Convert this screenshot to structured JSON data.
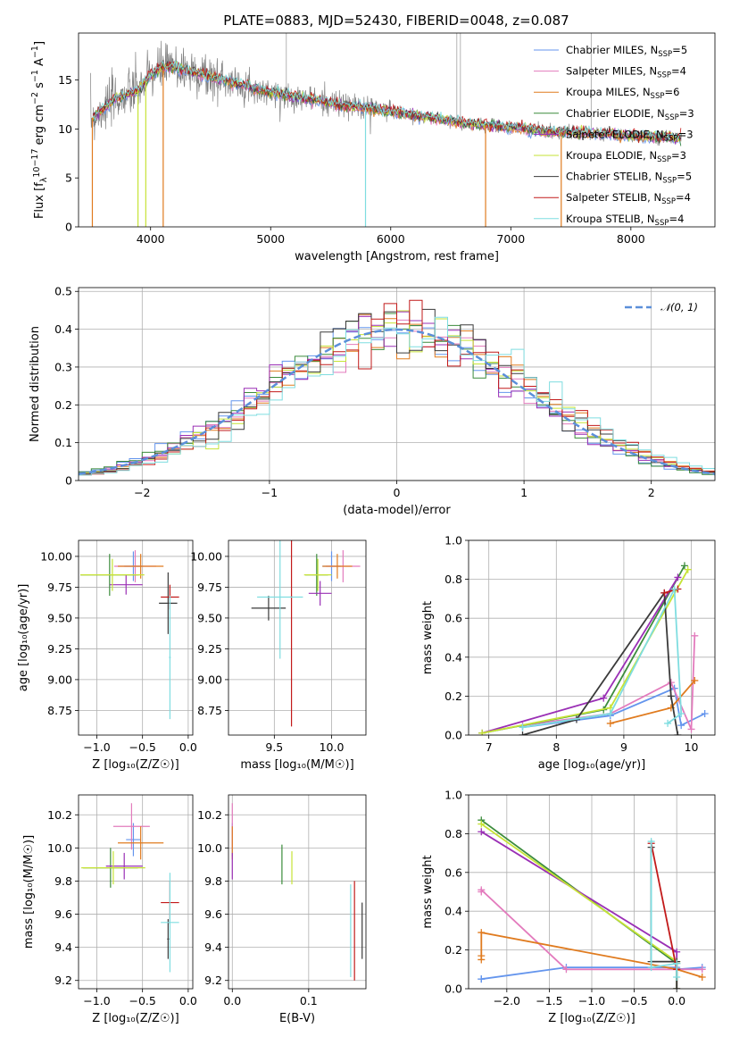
{
  "title": "PLATE=0883, MJD=52430, FIBERID=0048, z=0.087",
  "models": [
    {
      "label": "Chabrier MILES, N",
      "nssp": "5",
      "color": "#6495ed"
    },
    {
      "label": "Salpeter MILES, N",
      "nssp": "4",
      "color": "#e37bbd"
    },
    {
      "label": "Kroupa MILES, N",
      "nssp": "6",
      "color": "#e07b1f"
    },
    {
      "label": "Chabrier ELODIE, N",
      "nssp": "3",
      "color": "#3c8c3c"
    },
    {
      "label": "Salpeter ELODIE, N",
      "nssp": "3",
      "color": "#9a2fb5"
    },
    {
      "label": "Kroupa ELODIE, N",
      "nssp": "3",
      "color": "#c6e336"
    },
    {
      "label": "Chabrier STELIB, N",
      "nssp": "5",
      "color": "#3a3a3a"
    },
    {
      "label": "Salpeter STELIB, N",
      "nssp": "4",
      "color": "#c21a1a"
    },
    {
      "label": "Kroupa STELIB, N",
      "nssp": "4",
      "color": "#7fdde0"
    }
  ],
  "nssp_sub": "SSP",
  "chart_data": [
    {
      "type": "line",
      "id": "spectrum",
      "xlabel": "wavelength [Angstrom, rest frame]",
      "ylabel_parts": {
        "a": "Flux [f",
        "b": "λ",
        "c": "10",
        "d": "−17",
        "e": " erg cm",
        "f": "−2",
        "g": " s",
        "h": "−1",
        "i": " A",
        "j": "−1",
        "k": "]"
      },
      "xlim": [
        3400,
        8700
      ],
      "ylim": [
        0,
        19.8
      ],
      "xticks": [
        4000,
        5000,
        6000,
        7000,
        8000
      ],
      "yticks": [
        0,
        5,
        10,
        15
      ],
      "data_color": "#808080",
      "data_envelope": {
        "x": [
          3500,
          3600,
          3700,
          3800,
          3900,
          4000,
          4100,
          4200,
          4300,
          4400,
          4500,
          4600,
          4700,
          4800,
          4900,
          5000,
          5200,
          5400,
          5600,
          5800,
          6000,
          6200,
          6400,
          6600,
          6800,
          7000,
          7200,
          7400,
          7600,
          7800,
          8000,
          8200,
          8400
        ],
        "y": [
          11,
          12,
          13,
          13.5,
          14,
          15.5,
          16.3,
          16.3,
          16,
          15.7,
          15.3,
          15,
          14.7,
          14.4,
          14,
          13.7,
          13.3,
          12.9,
          12.4,
          12.2,
          11.8,
          11.4,
          11.0,
          10.6,
          10.4,
          10.2,
          9.9,
          9.7,
          9.6,
          9.5,
          9.3,
          9.2,
          9.1
        ]
      },
      "data_spikes": [
        {
          "x": 5130,
          "y": 19.8
        },
        {
          "x": 6550,
          "y": 19.8
        },
        {
          "x": 6580,
          "y": 19.8
        },
        {
          "x": 7670,
          "y": 19.8
        }
      ]
    },
    {
      "type": "line",
      "id": "residual_histogram",
      "ylabel": "Normed distribution",
      "xlabel": "(data-model)/error",
      "xlim": [
        -2.5,
        2.5
      ],
      "ylim": [
        0,
        0.51
      ],
      "xticks": [
        -2,
        -1,
        0,
        1,
        2
      ],
      "yticks": [
        0.0,
        0.1,
        0.2,
        0.3,
        0.4,
        0.5
      ],
      "normal_legend": "𝒩(0, 1)",
      "normal_color": "#5b8fd9",
      "bin_width": 0.1
    },
    {
      "type": "scatter",
      "id": "age_vs_Z",
      "xlabel": "Z [log₁₀(Z/Z☉)]",
      "ylabel": "age  [log₁₀(age/yr)]",
      "xlim": [
        -1.2,
        0.05
      ],
      "ylim": [
        8.55,
        10.13
      ],
      "xticks": [
        -1.0,
        -0.5,
        0.0
      ],
      "yticks": [
        8.75,
        9.0,
        9.25,
        9.5,
        9.75,
        10.0
      ],
      "points": [
        {
          "model": 0,
          "x": -0.6,
          "y": 9.92,
          "xerr": 0.1,
          "yerr": 0.12
        },
        {
          "model": 1,
          "x": -0.58,
          "y": 9.92,
          "xerr": 0.23,
          "yerr": 0.13
        },
        {
          "model": 2,
          "x": -0.52,
          "y": 9.92,
          "xerr": 0.25,
          "yerr": 0.1
        },
        {
          "model": 3,
          "x": -0.86,
          "y": 9.85,
          "xerr": 0.32,
          "yerr": 0.17
        },
        {
          "model": 4,
          "x": -0.68,
          "y": 9.77,
          "xerr": 0.18,
          "yerr": 0.08
        },
        {
          "model": 5,
          "x": -0.83,
          "y": 9.85,
          "xerr": 0.35,
          "yerr": 0.13
        },
        {
          "model": 6,
          "x": -0.22,
          "y": 9.62,
          "xerr": 0.1,
          "yerr": 0.25
        },
        {
          "model": 7,
          "x": -0.2,
          "y": 9.67,
          "xerr": 0.1,
          "yerr": 0.1
        },
        {
          "model": 8,
          "x": -0.2,
          "y": 9.18,
          "xerr": 0.01,
          "yerr": 0.5
        }
      ]
    },
    {
      "type": "scatter",
      "id": "age_vs_mass",
      "xlabel": "mass [log₁₀(M/M☉)]",
      "xlim": [
        9.1,
        10.3
      ],
      "ylim": [
        8.55,
        10.13
      ],
      "xticks": [
        9.5,
        10.0
      ],
      "yticks": [
        8.75,
        9.0,
        9.25,
        9.5,
        9.75,
        10.0
      ],
      "points": [
        {
          "model": 0,
          "x": 10.0,
          "y": 9.92,
          "xerr": 0.08,
          "yerr": 0.12
        },
        {
          "model": 1,
          "x": 10.1,
          "y": 9.92,
          "xerr": 0.15,
          "yerr": 0.13
        },
        {
          "model": 2,
          "x": 10.05,
          "y": 9.92,
          "xerr": 0.13,
          "yerr": 0.1
        },
        {
          "model": 3,
          "x": 9.87,
          "y": 9.85,
          "xerr": 0.1,
          "yerr": 0.17
        },
        {
          "model": 4,
          "x": 9.9,
          "y": 9.7,
          "xerr": 0.1,
          "yerr": 0.1
        },
        {
          "model": 5,
          "x": 9.88,
          "y": 9.85,
          "xerr": 0.12,
          "yerr": 0.13
        },
        {
          "model": 6,
          "x": 9.45,
          "y": 9.58,
          "xerr": 0.15,
          "yerr": 0.1
        },
        {
          "model": 7,
          "x": 9.65,
          "y": 9.67,
          "xerr": 0.01,
          "yerr": 1.05
        },
        {
          "model": 8,
          "x": 9.55,
          "y": 9.67,
          "xerr": 0.2,
          "yerr": 0.5
        }
      ]
    },
    {
      "type": "line",
      "id": "mass_weight_vs_age",
      "xlabel": "age  [log₁₀(age/yr)]",
      "ylabel": "mass weight",
      "xlim": [
        6.7,
        10.35
      ],
      "ylim": [
        0,
        1.0
      ],
      "xticks": [
        7,
        8,
        9,
        10
      ],
      "yticks": [
        0.0,
        0.2,
        0.4,
        0.6,
        0.8,
        1.0
      ],
      "series": [
        {
          "model": 0,
          "x": [
            7.5,
            8.8,
            9.75,
            9.85,
            10.2
          ],
          "y": [
            0.04,
            0.1,
            0.24,
            0.05,
            0.11
          ]
        },
        {
          "model": 1,
          "x": [
            7.5,
            8.8,
            9.7,
            10.0,
            10.05
          ],
          "y": [
            0.05,
            0.11,
            0.27,
            0.03,
            0.51
          ]
        },
        {
          "model": 2,
          "x": [
            8.8,
            9.7,
            10.05
          ],
          "y": [
            0.06,
            0.14,
            0.28
          ]
        },
        {
          "model": 3,
          "x": [
            6.9,
            8.7,
            9.9
          ],
          "y": [
            0.01,
            0.13,
            0.87
          ]
        },
        {
          "model": 4,
          "x": [
            6.9,
            8.7,
            9.8
          ],
          "y": [
            0.01,
            0.19,
            0.81
          ]
        },
        {
          "model": 5,
          "x": [
            6.9,
            8.8,
            9.95
          ],
          "y": [
            0.01,
            0.14,
            0.85
          ]
        },
        {
          "model": 6,
          "x": [
            7.5,
            8.3,
            9.6,
            9.7,
            9.8
          ],
          "y": [
            0.0,
            0.08,
            0.73,
            0.2,
            0.0
          ]
        },
        {
          "model": 7,
          "x": [
            9.6,
            9.8
          ],
          "y": [
            0.73,
            0.75
          ]
        },
        {
          "model": 8,
          "x": [
            7.5,
            8.8,
            9.75,
            9.85,
            9.65
          ],
          "y": [
            0.04,
            0.11,
            0.75,
            0.11,
            0.06
          ]
        }
      ]
    },
    {
      "type": "scatter",
      "id": "mass_vs_Z",
      "xlabel": "Z [log₁₀(Z/Z☉)]",
      "ylabel": "mass [log₁₀(M/M☉)]",
      "xlim": [
        -1.2,
        0.05
      ],
      "ylim": [
        9.15,
        10.32
      ],
      "xticks": [
        -1.0,
        -0.5,
        0.0
      ],
      "yticks": [
        9.2,
        9.4,
        9.6,
        9.8,
        10.0,
        10.2
      ],
      "points": [
        {
          "model": 0,
          "x": -0.6,
          "y": 10.05,
          "xerr": 0.08,
          "yerr": 0.1
        },
        {
          "model": 1,
          "x": -0.62,
          "y": 10.13,
          "xerr": 0.2,
          "yerr": 0.14
        },
        {
          "model": 2,
          "x": -0.52,
          "y": 10.03,
          "xerr": 0.25,
          "yerr": 0.1
        },
        {
          "model": 3,
          "x": -0.85,
          "y": 9.88,
          "xerr": 0.3,
          "yerr": 0.12
        },
        {
          "model": 4,
          "x": -0.7,
          "y": 9.89,
          "xerr": 0.2,
          "yerr": 0.08
        },
        {
          "model": 5,
          "x": -0.82,
          "y": 9.88,
          "xerr": 0.35,
          "yerr": 0.1
        },
        {
          "model": 6,
          "x": -0.22,
          "y": 9.45,
          "xerr": 0.01,
          "yerr": 0.12
        },
        {
          "model": 7,
          "x": -0.2,
          "y": 9.67,
          "xerr": 0.1,
          "yerr": 0.13
        },
        {
          "model": 8,
          "x": -0.2,
          "y": 9.55,
          "xerr": 0.1,
          "yerr": 0.3
        }
      ]
    },
    {
      "type": "scatter",
      "id": "mass_vs_EBV",
      "xlabel": "E(B-V)",
      "xlim": [
        -0.005,
        0.175
      ],
      "ylim": [
        9.15,
        10.32
      ],
      "xticks": [
        0.0,
        0.1
      ],
      "yticks": [
        9.2,
        9.4,
        9.6,
        9.8,
        10.0,
        10.2
      ],
      "points": [
        {
          "model": 0,
          "x": 0.0,
          "y": 10.05,
          "xerr": 0,
          "yerr": 0.1
        },
        {
          "model": 1,
          "x": 0.0,
          "y": 10.13,
          "xerr": 0,
          "yerr": 0.14
        },
        {
          "model": 2,
          "x": 0.0,
          "y": 10.03,
          "xerr": 0,
          "yerr": 0.1
        },
        {
          "model": 4,
          "x": 0.0,
          "y": 9.89,
          "xerr": 0,
          "yerr": 0.08
        },
        {
          "model": 3,
          "x": 0.065,
          "y": 9.9,
          "xerr": 0,
          "yerr": 0.12
        },
        {
          "model": 5,
          "x": 0.078,
          "y": 9.88,
          "xerr": 0,
          "yerr": 0.1
        },
        {
          "model": 8,
          "x": 0.155,
          "y": 9.5,
          "xerr": 0,
          "yerr": 0.28
        },
        {
          "model": 7,
          "x": 0.16,
          "y": 9.5,
          "xerr": 0,
          "yerr": 0.3
        },
        {
          "model": 6,
          "x": 0.17,
          "y": 9.5,
          "xerr": 0,
          "yerr": 0.17
        }
      ]
    },
    {
      "type": "line",
      "id": "mass_weight_vs_Z",
      "xlabel": "Z [log₁₀(Z/Z☉)]",
      "ylabel": "mass weight",
      "xlim": [
        -2.45,
        0.45
      ],
      "ylim": [
        0,
        1.0
      ],
      "xticks": [
        -2.0,
        -1.5,
        -1.0,
        -0.5,
        0.0
      ],
      "yticks": [
        0.0,
        0.2,
        0.4,
        0.6,
        0.8,
        1.0
      ],
      "series": [
        {
          "model": 0,
          "x": [
            -2.3,
            -2.3,
            -1.3,
            0.0,
            0.0,
            0.3
          ],
          "y": [
            0.05,
            0.05,
            0.11,
            0.11,
            0.1,
            0.11
          ]
        },
        {
          "model": 1,
          "x": [
            -2.3,
            -2.3,
            -1.3,
            0.0,
            0.3
          ],
          "y": [
            0.5,
            0.51,
            0.1,
            0.1,
            0.1
          ]
        },
        {
          "model": 2,
          "x": [
            -2.3,
            -2.3,
            -2.3,
            0.0,
            0.3
          ],
          "y": [
            0.15,
            0.17,
            0.29,
            0.1,
            0.06
          ]
        },
        {
          "model": 3,
          "x": [
            -2.3,
            0.0,
            0.0
          ],
          "y": [
            0.87,
            0.13,
            0.0
          ]
        },
        {
          "model": 4,
          "x": [
            -2.3,
            0.0,
            0.0
          ],
          "y": [
            0.81,
            0.19,
            0.0
          ]
        },
        {
          "model": 5,
          "x": [
            -2.3,
            0.0,
            0.0
          ],
          "y": [
            0.85,
            0.14,
            0.0
          ]
        },
        {
          "model": 6,
          "x": [
            -0.3,
            -0.3,
            0.0,
            0.0
          ],
          "y": [
            0.73,
            0.14,
            0.14,
            0.0
          ]
        },
        {
          "model": 7,
          "x": [
            -0.3,
            0.0
          ],
          "y": [
            0.75,
            0.1
          ]
        },
        {
          "model": 8,
          "x": [
            -0.3,
            -0.3,
            0.0,
            0.0
          ],
          "y": [
            0.76,
            0.11,
            0.13,
            0.06
          ]
        }
      ]
    }
  ]
}
